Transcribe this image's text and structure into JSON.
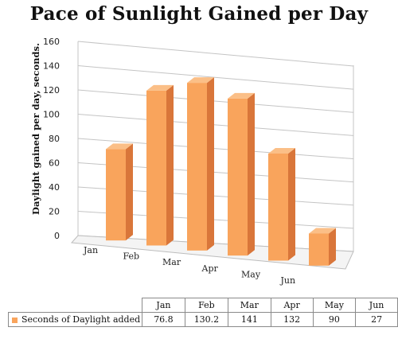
{
  "colors": {
    "bar_front": "#f9a45c",
    "bar_side": "#d9763a",
    "bar_top": "#fbbf87",
    "grid": "#c4c4c4",
    "floor": "#bdbdbd"
  },
  "chart_data": {
    "type": "bar",
    "title": "Pace of Sunlight Gained per Day",
    "ylabel": "Daylight gained per day, seconds.",
    "xlabel": "",
    "categories": [
      "Jan",
      "Feb",
      "Mar",
      "Apr",
      "May",
      "Jun"
    ],
    "series": [
      {
        "name": "Seconds of Daylight added",
        "values": [
          76.8,
          130.2,
          141,
          132,
          90,
          27
        ]
      }
    ],
    "ylim": [
      0,
      160
    ],
    "yticks": [
      "0",
      "20",
      "40",
      "60",
      "80",
      "100",
      "120",
      "140",
      "160"
    ],
    "grid": true,
    "legend": "bottom data table",
    "style": "3d-column"
  },
  "table": {
    "headers": [
      "Jan",
      "Feb",
      "Mar",
      "Apr",
      "May",
      "Jun"
    ],
    "series_label": "Seconds of Daylight added",
    "values": [
      "76.8",
      "130.2",
      "141",
      "132",
      "90",
      "27"
    ]
  }
}
